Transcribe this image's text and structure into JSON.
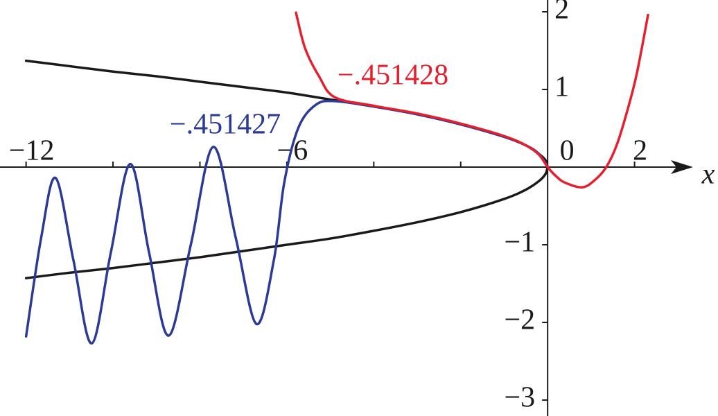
{
  "chart_data": {
    "type": "line",
    "xlim": [
      -12.6,
      3.92
    ],
    "ylim": [
      -3.205,
      2.152
    ],
    "xticks": [
      {
        "value": -12,
        "label": "−12"
      },
      {
        "value": -6,
        "label": "−6"
      },
      0,
      2
    ],
    "xminorticks": [
      -10,
      -8,
      -4,
      -2
    ],
    "yticks": [
      2,
      1,
      {
        "value": -1,
        "label": "−1"
      },
      {
        "value": -2,
        "label": "−2"
      },
      {
        "value": -3,
        "label": "−3"
      }
    ],
    "x_label": "x",
    "grid": false,
    "series": [
      {
        "color": "#1a1a1a",
        "x": [
          -12,
          -11,
          -10,
          -9,
          -8,
          -7,
          -6,
          -5,
          -4,
          -3,
          -2,
          -1,
          -0.5,
          -0.2,
          -0.05,
          0
        ],
        "values": [
          1.37,
          1.3,
          1.23,
          1.17,
          1.1,
          1.03,
          0.96,
          0.87,
          0.78,
          0.68,
          0.55,
          0.39,
          0.28,
          0.17,
          0.09,
          0
        ]
      },
      {
        "color": "#1a1a1a",
        "x": [
          -12,
          -11,
          -10,
          -9,
          -8,
          -7,
          -6,
          -5,
          -4,
          -3,
          -2,
          -1,
          -0.5,
          -0.2,
          -0.05,
          0
        ],
        "values": [
          -1.43,
          -1.36,
          -1.3,
          -1.23,
          -1.16,
          -1.08,
          -1.0,
          -0.92,
          -0.82,
          -0.71,
          -0.58,
          -0.41,
          -0.29,
          -0.18,
          -0.09,
          0
        ]
      },
      {
        "name": "−.451427",
        "color": "#2b3a96",
        "x": [
          -12.0,
          -11.65,
          -11.32,
          -10.91,
          -10.49,
          -10.05,
          -9.6,
          -9.17,
          -8.72,
          -8.21,
          -7.69,
          -7.18,
          -6.7,
          -6.3,
          -6.06,
          -5.74,
          -5.34,
          -4.9,
          -4,
          -3,
          -2,
          -1,
          -0.5,
          -0.2,
          0
        ],
        "values": [
          -2.18,
          -0.9,
          -0.14,
          -1.2,
          -2.27,
          -1.1,
          0.04,
          -1.1,
          -2.17,
          -1.0,
          0.26,
          -0.9,
          -2.02,
          -1.2,
          -0.2,
          0.5,
          0.8,
          0.85,
          0.78,
          0.68,
          0.55,
          0.39,
          0.28,
          0.17,
          0
        ]
      },
      {
        "name": "−.451428",
        "color": "#e5202e",
        "x": [
          -5.79,
          -5.58,
          -5.26,
          -4.9,
          -4,
          -3,
          -2,
          -1,
          -0.5,
          -0.2,
          0,
          0.2,
          0.4,
          0.8,
          1.1,
          1.36,
          1.6,
          1.83,
          2.05,
          2.31
        ],
        "values": [
          1.99,
          1.53,
          1.17,
          0.9,
          0.79,
          0.69,
          0.56,
          0.4,
          0.28,
          0.16,
          0,
          -0.12,
          -0.2,
          -0.26,
          -0.16,
          0.01,
          0.3,
          0.72,
          1.2,
          1.96
        ]
      }
    ]
  }
}
